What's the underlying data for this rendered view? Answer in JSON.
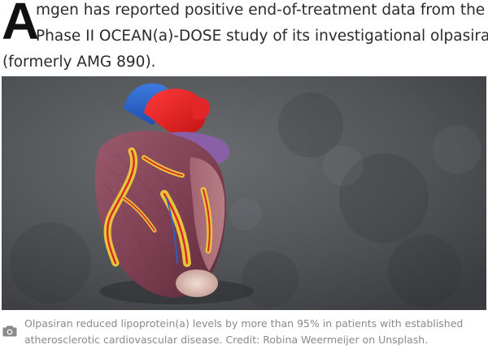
{
  "article": {
    "drop_cap": "A",
    "lead_lines": [
      "mgen has reported positive end-of-treatment data from the",
      "Phase II OCEAN(a)-DOSE study of its investigational olpasiran",
      "(formerly AMG 890)."
    ]
  },
  "image": {
    "subject": "heart-model-photo"
  },
  "caption": {
    "icon": "camera-icon",
    "lines": [
      "Olpasiran reduced lipoprotein(a) levels by more than 95% in patients with established",
      "atherosclerotic cardiovascular disease. Credit: Robina Weermeijer on Unsplash."
    ]
  }
}
